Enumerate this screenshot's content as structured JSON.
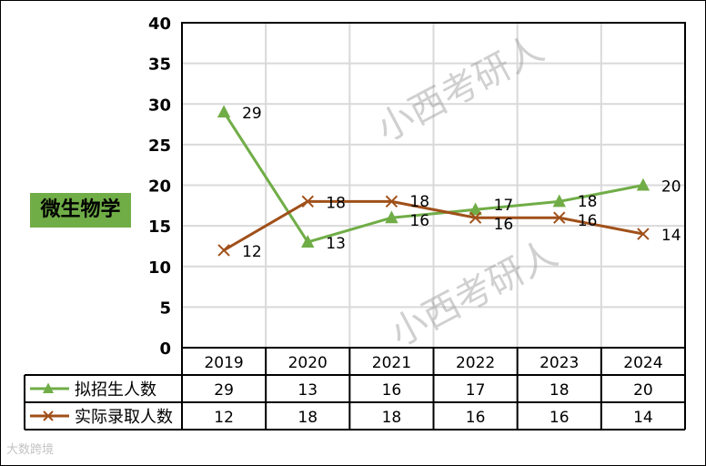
{
  "chart_data": {
    "type": "line",
    "title": "微生物学",
    "categories": [
      "2019",
      "2020",
      "2021",
      "2022",
      "2023",
      "2024"
    ],
    "series": [
      {
        "name": "拟招生人数",
        "values": [
          29,
          13,
          16,
          17,
          18,
          20
        ],
        "color": "#70ad47",
        "marker": "triangle"
      },
      {
        "name": "实际录取人数",
        "values": [
          12,
          18,
          18,
          16,
          16,
          14
        ],
        "color": "#a0501a",
        "marker": "x"
      }
    ],
    "ylim": [
      0,
      40
    ],
    "yticks": [
      0,
      5,
      10,
      15,
      20,
      25,
      30,
      35,
      40
    ],
    "grid": true,
    "legend": "data-table"
  },
  "watermark": {
    "text": "小西考研人",
    "logo": "大数跨境"
  }
}
